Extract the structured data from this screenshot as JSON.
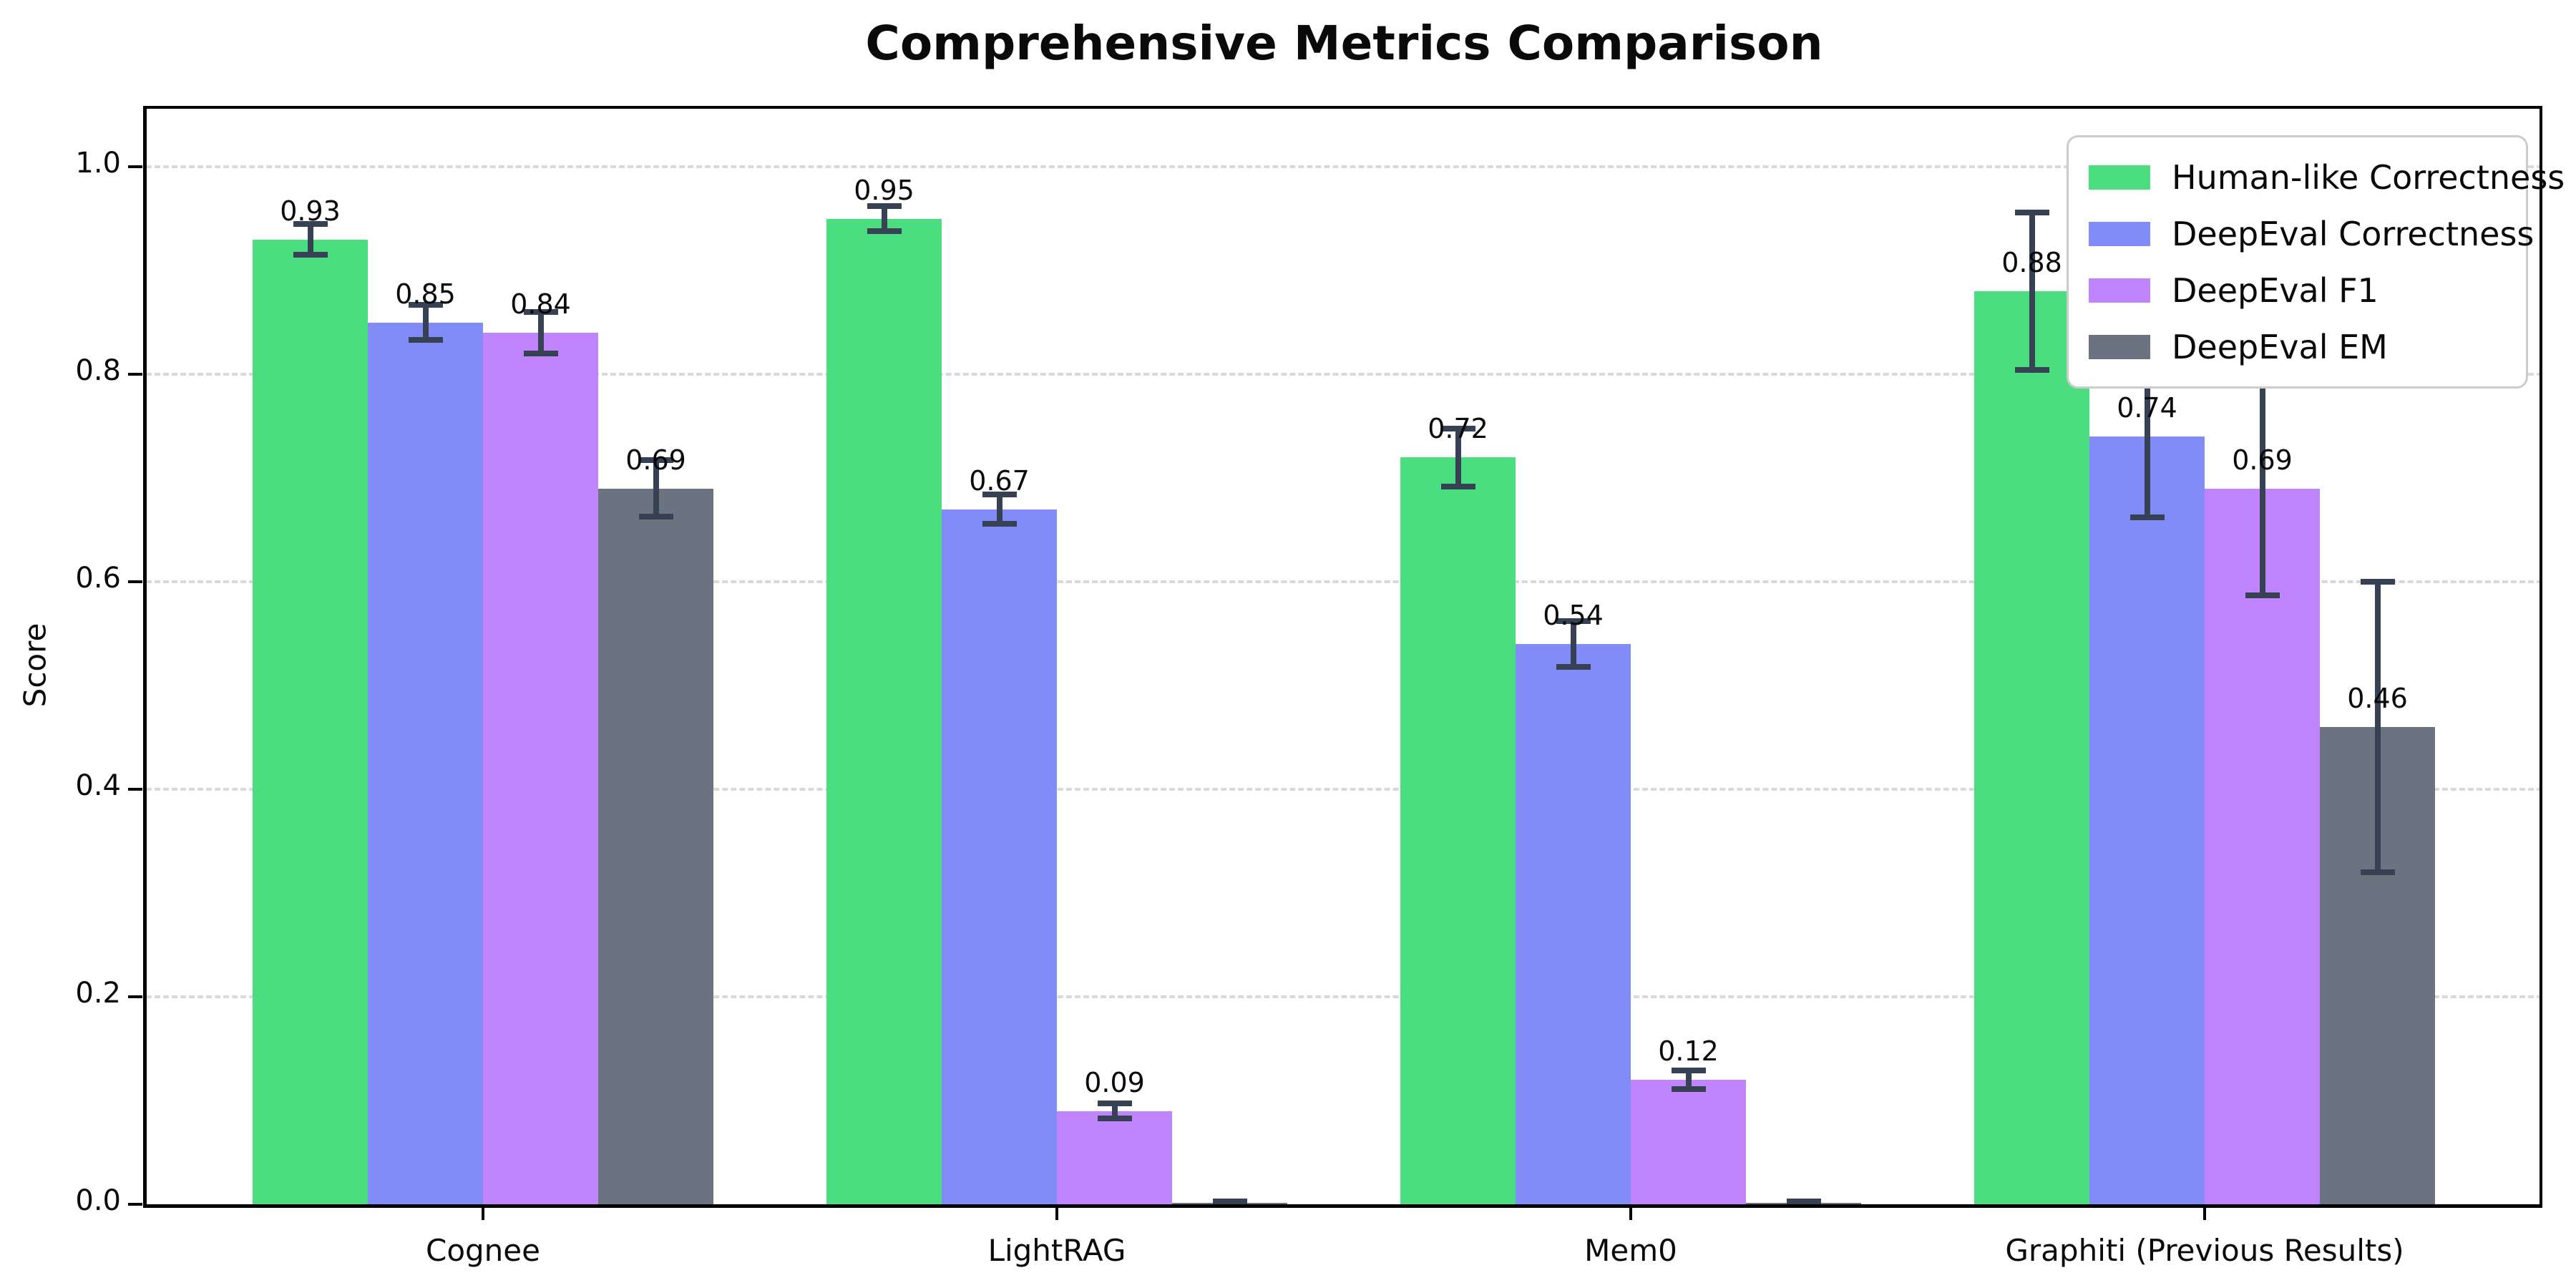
{
  "title": "Comprehensive Metrics Comparison",
  "chart_data": {
    "type": "bar",
    "title": "Comprehensive Metrics Comparison",
    "xlabel": "",
    "ylabel": "Score",
    "categories": [
      "Cognee",
      "LightRAG",
      "Mem0",
      "Graphiti (Previous Results)"
    ],
    "series": [
      {
        "name": "Human-like Correctness",
        "color": "#4ade80",
        "values": [
          0.93,
          0.95,
          0.72,
          0.88
        ],
        "errors": [
          0.015,
          0.012,
          0.028,
          0.076
        ],
        "labels": [
          "0.93",
          "0.95",
          "0.72",
          "0.88"
        ]
      },
      {
        "name": "DeepEval Correctness",
        "color": "#818cf8",
        "values": [
          0.85,
          0.67,
          0.54,
          0.74
        ],
        "errors": [
          0.017,
          0.014,
          0.022,
          0.078
        ],
        "labels": [
          "0.85",
          "0.67",
          "0.54",
          "0.74"
        ]
      },
      {
        "name": "DeepEval F1",
        "color": "#c084fc",
        "values": [
          0.84,
          0.09,
          0.12,
          0.69
        ],
        "errors": [
          0.02,
          0.007,
          0.009,
          0.103
        ],
        "labels": [
          "0.84",
          "0.09",
          "0.12",
          "0.69"
        ]
      },
      {
        "name": "DeepEval EM",
        "color": "#6b7280",
        "values": [
          0.69,
          0.0,
          0.0,
          0.46
        ],
        "errors": [
          0.027,
          0.003,
          0.003,
          0.14
        ],
        "labels": [
          "0.69",
          "",
          "",
          "0.46"
        ]
      }
    ],
    "y_ticks": [
      0.0,
      0.2,
      0.4,
      0.6,
      0.8,
      1.0
    ],
    "y_tick_labels": [
      "0.0",
      "0.2",
      "0.4",
      "0.6",
      "0.8",
      "1.0"
    ],
    "ylim": [
      0,
      1.056
    ],
    "grid": "horizontal-dashed",
    "legend_position": "upper right",
    "errorbar_color": "#364153",
    "grid_color": "#d9d9d9",
    "axis_color": "#000000",
    "background_color": "#ffffff"
  }
}
